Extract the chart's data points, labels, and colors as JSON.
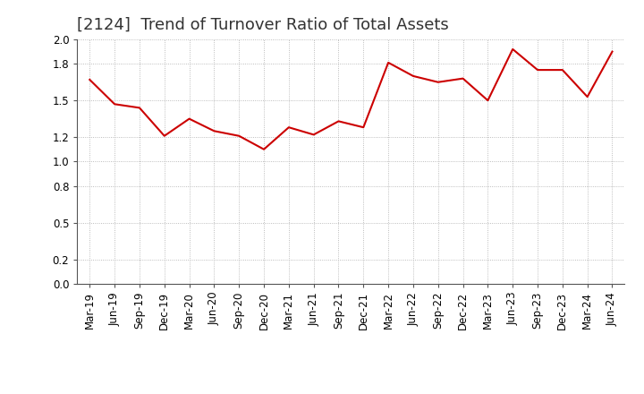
{
  "title": "[2124]  Trend of Turnover Ratio of Total Assets",
  "labels": [
    "Mar-19",
    "Jun-19",
    "Sep-19",
    "Dec-19",
    "Mar-20",
    "Jun-20",
    "Sep-20",
    "Dec-20",
    "Mar-21",
    "Jun-21",
    "Sep-21",
    "Dec-21",
    "Mar-22",
    "Jun-22",
    "Sep-22",
    "Dec-22",
    "Mar-23",
    "Jun-23",
    "Sep-23",
    "Dec-23",
    "Mar-24",
    "Jun-24"
  ],
  "values": [
    1.67,
    1.47,
    1.44,
    1.21,
    1.35,
    1.25,
    1.21,
    1.1,
    1.28,
    1.22,
    1.33,
    1.28,
    1.81,
    1.7,
    1.65,
    1.68,
    1.5,
    1.92,
    1.75,
    1.75,
    1.53,
    1.9
  ],
  "line_color": "#cc0000",
  "line_width": 1.5,
  "ylim": [
    0.0,
    2.0
  ],
  "yticks": [
    0.0,
    0.2,
    0.5,
    0.8,
    1.0,
    1.2,
    1.5,
    1.8,
    2.0
  ],
  "grid_color": "#aaaaaa",
  "bg_color": "#ffffff",
  "title_fontsize": 13,
  "tick_fontsize": 8.5
}
